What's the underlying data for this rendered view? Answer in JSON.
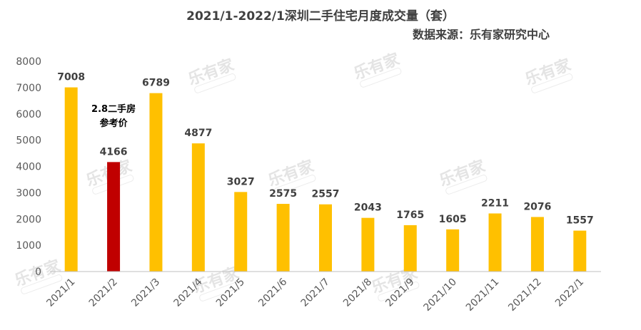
{
  "chart_data": {
    "type": "bar",
    "title": "2021/1-2022/1深圳二手住宅月度成交量（套）",
    "source": "数据来源：乐有家研究中心",
    "categories": [
      "2021/1",
      "2021/2",
      "2021/3",
      "2021/4",
      "2021/5",
      "2021/6",
      "2021/7",
      "2021/8",
      "2021/9",
      "2021/10",
      "2021/11",
      "2021/12",
      "2022/1"
    ],
    "values": [
      7008,
      4166,
      6789,
      4877,
      3027,
      2575,
      2557,
      2043,
      1765,
      1605,
      2211,
      2076,
      1557
    ],
    "ylim": [
      0,
      8000
    ],
    "yticks": [
      0,
      1000,
      2000,
      3000,
      4000,
      5000,
      6000,
      7000,
      8000
    ],
    "grid": false,
    "colors": {
      "default": "#FFC000",
      "highlight": "#C00000"
    },
    "highlight_index": 1,
    "annotation": {
      "category": "2021/2",
      "lines": [
        "2.8二手房",
        "参考价"
      ]
    },
    "watermark": "乐有家"
  }
}
